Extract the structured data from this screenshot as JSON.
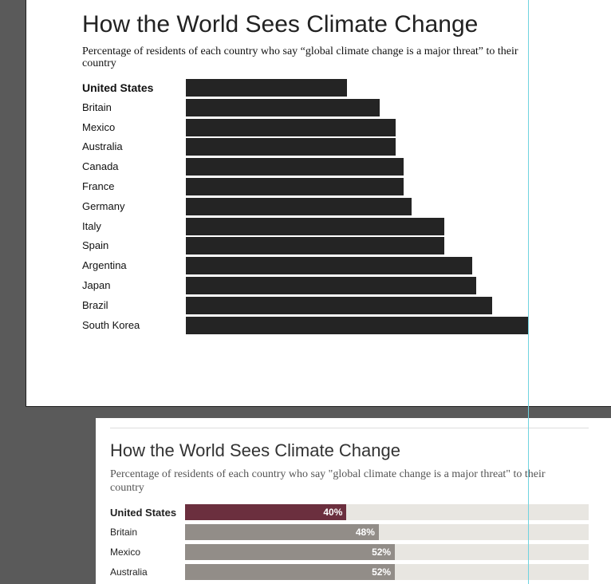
{
  "top_chart": {
    "title": "How the World Sees Climate Change",
    "subtitle": "Percentage of residents of each country who say “global climate change is a major threat” to their country",
    "chart_data": {
      "type": "bar",
      "categories": [
        "United States",
        "Britain",
        "Mexico",
        "Australia",
        "Canada",
        "France",
        "Germany",
        "Italy",
        "Spain",
        "Argentina",
        "Japan",
        "Brazil",
        "South Korea"
      ],
      "values": [
        40,
        48,
        52,
        52,
        54,
        54,
        56,
        64,
        64,
        71,
        72,
        76,
        85
      ],
      "highlight": "United States",
      "bar_color": "#242424",
      "xlim": [
        0,
        85
      ]
    }
  },
  "bottom_chart": {
    "title": "How the World Sees Climate Change",
    "subtitle": "Percentage of residents of each country who say \"global climate change is a major threat\" to their country",
    "chart_data": {
      "type": "bar",
      "categories": [
        "United States",
        "Britain",
        "Mexico",
        "Australia"
      ],
      "values": [
        40,
        48,
        52,
        52
      ],
      "value_labels": [
        "40%",
        "48%",
        "52%",
        "52%"
      ],
      "highlight": "United States",
      "highlight_color": "#6b2f3e",
      "bar_color": "#928d88",
      "track_color": "#e8e6e1",
      "xlim": [
        0,
        100
      ]
    }
  }
}
